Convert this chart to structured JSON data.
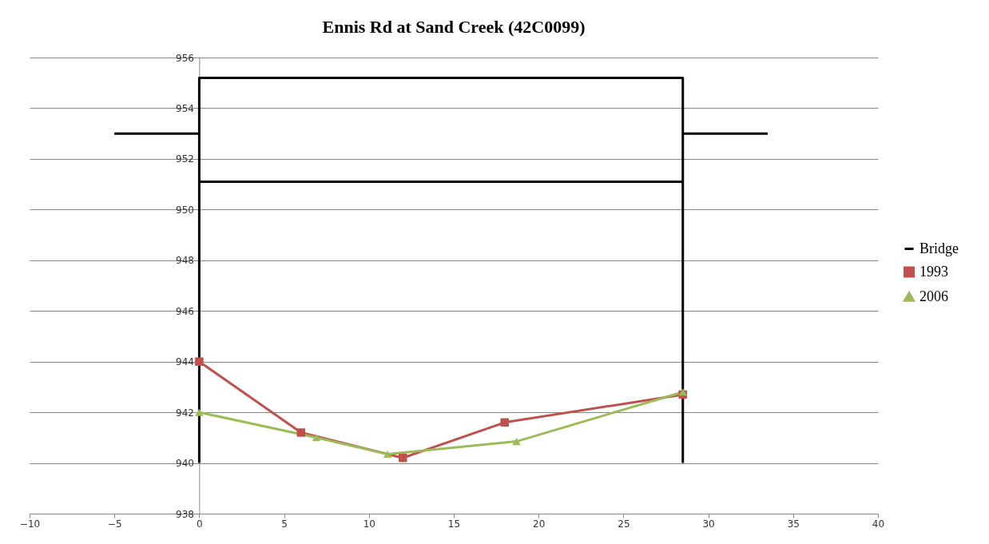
{
  "chart_data": {
    "type": "line",
    "title": "Ennis Rd at Sand Creek (42C0099)",
    "xlim": [
      -10,
      40
    ],
    "xticks": [
      -10,
      -5,
      0,
      5,
      10,
      15,
      20,
      25,
      30,
      35,
      40
    ],
    "ylim": [
      938,
      956
    ],
    "yticks": [
      938,
      940,
      942,
      944,
      946,
      948,
      950,
      952,
      954,
      956
    ],
    "grid": "y",
    "legend": "right",
    "line_style": "solid",
    "series": [
      {
        "name": "Bridge",
        "color": "#000000",
        "marker": "none",
        "x": [
          -5,
          0,
          null,
          0,
          0,
          28.5,
          28.5,
          null,
          0,
          28.5,
          null,
          28.5,
          33.5
        ],
        "values": [
          953,
          953,
          null,
          940,
          955.2,
          955.2,
          940,
          null,
          951.1,
          951.1,
          null,
          953,
          953
        ]
      },
      {
        "name": "1993",
        "color": "#c0504d",
        "marker": "square",
        "x": [
          0,
          6,
          12,
          18,
          28.5
        ],
        "values": [
          944,
          941.2,
          940.2,
          941.6,
          942.7
        ]
      },
      {
        "name": "2006",
        "color": "#9bbb59",
        "marker": "triangle",
        "x": [
          0,
          6.9,
          11.1,
          18.7,
          28.5
        ],
        "values": [
          942,
          941,
          940.35,
          940.85,
          942.8
        ]
      }
    ]
  }
}
